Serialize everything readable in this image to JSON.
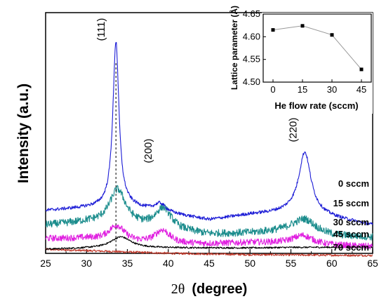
{
  "chart_data": {
    "main": {
      "type": "line",
      "xlabel_symbol": "2θ",
      "xlabel_unit": "(degree)",
      "ylabel": "Intensity (a.u.)",
      "xlim": [
        25,
        65
      ],
      "xticks": [
        25,
        30,
        35,
        40,
        45,
        50,
        55,
        60,
        65
      ],
      "reference_line_x": 33.6,
      "peak_labels": [
        {
          "text": "(111)",
          "x": 33.6
        },
        {
          "text": "(200)",
          "x": 39.0
        },
        {
          "text": "(220)",
          "x": 56.7
        }
      ],
      "series": [
        {
          "name": "0 sccm",
          "color": "#1c1cd6",
          "baseline": [
            [
              25,
              0.155
            ],
            [
              30,
              0.165
            ],
            [
              35,
              0.17
            ],
            [
              40,
              0.145
            ],
            [
              45,
              0.12
            ],
            [
              50,
              0.14
            ],
            [
              55,
              0.15
            ],
            [
              58,
              0.14
            ],
            [
              65,
              0.1
            ]
          ],
          "peaks": [
            [
              33.6,
              0.62,
              0.45
            ],
            [
              39.0,
              0.03,
              0.8
            ],
            [
              56.7,
              0.23,
              0.9
            ]
          ],
          "noise": 0.006
        },
        {
          "name": "15 sccm",
          "color": "#1a8c8c",
          "baseline": [
            [
              25,
              0.1
            ],
            [
              30,
              0.11
            ],
            [
              35,
              0.1
            ],
            [
              40,
              0.08
            ],
            [
              45,
              0.065
            ],
            [
              50,
              0.07
            ],
            [
              55,
              0.08
            ],
            [
              60,
              0.06
            ],
            [
              65,
              0.055
            ]
          ],
          "peaks": [
            [
              33.8,
              0.13,
              1.2
            ],
            [
              39.4,
              0.08,
              1.2
            ],
            [
              56.7,
              0.05,
              1.6
            ]
          ],
          "noise": 0.014
        },
        {
          "name": "30 sccm",
          "color": "#e020e0",
          "baseline": [
            [
              25,
              0.05
            ],
            [
              30,
              0.05
            ],
            [
              35,
              0.035
            ],
            [
              40,
              0.03
            ],
            [
              45,
              0.03
            ],
            [
              50,
              0.035
            ],
            [
              55,
              0.035
            ],
            [
              60,
              0.025
            ],
            [
              65,
              0.02
            ]
          ],
          "peaks": [
            [
              33.7,
              0.06,
              1.2
            ],
            [
              39.3,
              0.05,
              1.1
            ],
            [
              56.5,
              0.03,
              1.4
            ]
          ],
          "noise": 0.012
        },
        {
          "name": "45 sccm",
          "color": "#000000",
          "baseline": [
            [
              25,
              0.01
            ],
            [
              30,
              0.013
            ],
            [
              35,
              0.015
            ],
            [
              40,
              0.015
            ],
            [
              45,
              0.015
            ],
            [
              50,
              0.015
            ],
            [
              55,
              0.017
            ],
            [
              65,
              0.018
            ]
          ],
          "peaks": [
            [
              34.2,
              0.042,
              1.5
            ]
          ],
          "noise": 0.003
        },
        {
          "name": "70 sccm",
          "color": "#c0392b",
          "baseline": [
            [
              25,
              0.01
            ],
            [
              30,
              0.005
            ],
            [
              40,
              -0.005
            ],
            [
              50,
              -0.01
            ],
            [
              60,
              -0.012
            ],
            [
              65,
              -0.013
            ]
          ],
          "peaks": [],
          "noise": 0.004
        }
      ]
    },
    "inset": {
      "type": "line",
      "xlabel": "He flow rate (sccm)",
      "ylabel": "Lattice parameter (Å)",
      "x": [
        0,
        15,
        30,
        45
      ],
      "y": [
        4.615,
        4.624,
        4.604,
        4.528
      ],
      "xticks": [
        0,
        15,
        30,
        45
      ],
      "yticks": [
        4.5,
        4.55,
        4.6,
        4.65
      ],
      "xlim": [
        -5,
        50
      ],
      "ylim": [
        4.5,
        4.65
      ]
    }
  }
}
